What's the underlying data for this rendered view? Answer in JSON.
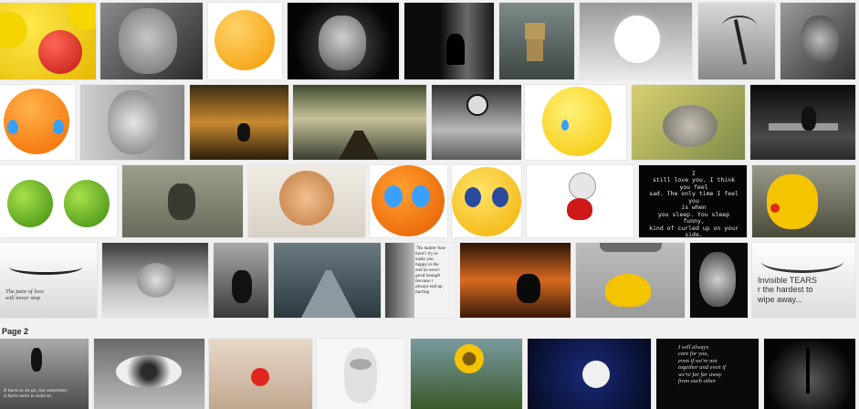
{
  "results_page_label": "Page 2",
  "captions": {
    "tear_quote": "The pain of love\nwill never stop",
    "love_note": "I\nstill love you. I think you feel\nsad. The only time I feel you\nis when\nyou sleep. You sleep funny,\nkind of curled up on your side.",
    "no_matter": "\"No matter how\nhard i try to\nmake you\nhappy in the\nend its never\ngood enough\nbecause i\nalways end up\nhurting",
    "invisible_tears": "Invisible TEARS\nr the hardest to\nwipe away...",
    "hurts_to_let_go": "It hurts to let go, but sometimes\nit hurts more to hold on.",
    "always_care": "I will always\ncare for you,\neven if we're not\ntogether and even if\nwe're far far away\nfrom each other"
  },
  "colors": {
    "background": "#f1f1f1",
    "smiley_yellow": "#f5c400",
    "sad_red": "#e0271d",
    "tear_blue": "#3aa0ff"
  }
}
